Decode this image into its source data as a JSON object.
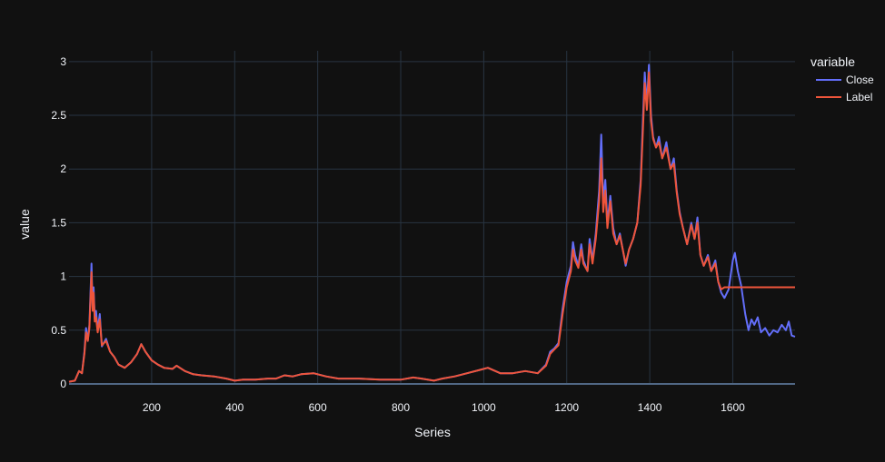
{
  "colors": {
    "background": "#111111",
    "grid": "#283442",
    "zeroline": "#506784",
    "text": "#f2f5fa"
  },
  "chart_data": {
    "type": "line",
    "xlabel": "Series",
    "ylabel": "value",
    "xlim": [
      1,
      1750
    ],
    "ylim": [
      0,
      3.1
    ],
    "xticks": [
      200,
      400,
      600,
      800,
      1000,
      1200,
      1400,
      1600
    ],
    "yticks": [
      0,
      0.5,
      1,
      1.5,
      2,
      2.5,
      3
    ],
    "ytick_labels": [
      "0",
      "0.5",
      "1",
      "1.5",
      "2",
      "2.5",
      "3"
    ],
    "grid": true,
    "legend": {
      "title": "variable",
      "placement": "top-right"
    },
    "series": [
      {
        "name": "Close",
        "color": "#636efa",
        "points": [
          [
            1,
            0.02
          ],
          [
            15,
            0.03
          ],
          [
            25,
            0.12
          ],
          [
            32,
            0.1
          ],
          [
            38,
            0.3
          ],
          [
            42,
            0.52
          ],
          [
            46,
            0.4
          ],
          [
            50,
            0.55
          ],
          [
            55,
            1.12
          ],
          [
            58,
            0.7
          ],
          [
            60,
            0.9
          ],
          [
            63,
            0.6
          ],
          [
            66,
            0.68
          ],
          [
            70,
            0.5
          ],
          [
            75,
            0.65
          ],
          [
            80,
            0.35
          ],
          [
            90,
            0.42
          ],
          [
            100,
            0.3
          ],
          [
            110,
            0.25
          ],
          [
            120,
            0.18
          ],
          [
            135,
            0.15
          ],
          [
            150,
            0.2
          ],
          [
            165,
            0.28
          ],
          [
            175,
            0.37
          ],
          [
            185,
            0.3
          ],
          [
            200,
            0.22
          ],
          [
            215,
            0.18
          ],
          [
            230,
            0.15
          ],
          [
            250,
            0.14
          ],
          [
            260,
            0.17
          ],
          [
            280,
            0.12
          ],
          [
            300,
            0.09
          ],
          [
            320,
            0.08
          ],
          [
            350,
            0.07
          ],
          [
            380,
            0.05
          ],
          [
            400,
            0.03
          ],
          [
            420,
            0.04
          ],
          [
            450,
            0.04
          ],
          [
            480,
            0.05
          ],
          [
            500,
            0.05
          ],
          [
            520,
            0.08
          ],
          [
            540,
            0.07
          ],
          [
            560,
            0.09
          ],
          [
            590,
            0.1
          ],
          [
            620,
            0.07
          ],
          [
            650,
            0.05
          ],
          [
            700,
            0.05
          ],
          [
            750,
            0.04
          ],
          [
            800,
            0.04
          ],
          [
            830,
            0.06
          ],
          [
            850,
            0.05
          ],
          [
            880,
            0.03
          ],
          [
            900,
            0.05
          ],
          [
            930,
            0.07
          ],
          [
            960,
            0.1
          ],
          [
            990,
            0.13
          ],
          [
            1010,
            0.15
          ],
          [
            1040,
            0.1
          ],
          [
            1070,
            0.1
          ],
          [
            1100,
            0.12
          ],
          [
            1130,
            0.1
          ],
          [
            1150,
            0.18
          ],
          [
            1160,
            0.3
          ],
          [
            1170,
            0.33
          ],
          [
            1180,
            0.38
          ],
          [
            1190,
            0.7
          ],
          [
            1200,
            0.95
          ],
          [
            1210,
            1.1
          ],
          [
            1215,
            1.32
          ],
          [
            1220,
            1.2
          ],
          [
            1228,
            1.1
          ],
          [
            1235,
            1.3
          ],
          [
            1240,
            1.15
          ],
          [
            1250,
            1.05
          ],
          [
            1255,
            1.35
          ],
          [
            1262,
            1.15
          ],
          [
            1270,
            1.4
          ],
          [
            1278,
            1.8
          ],
          [
            1283,
            2.32
          ],
          [
            1288,
            1.7
          ],
          [
            1293,
            1.9
          ],
          [
            1298,
            1.5
          ],
          [
            1305,
            1.75
          ],
          [
            1312,
            1.45
          ],
          [
            1320,
            1.3
          ],
          [
            1328,
            1.4
          ],
          [
            1335,
            1.25
          ],
          [
            1342,
            1.1
          ],
          [
            1350,
            1.25
          ],
          [
            1360,
            1.35
          ],
          [
            1370,
            1.5
          ],
          [
            1378,
            1.9
          ],
          [
            1383,
            2.4
          ],
          [
            1388,
            2.9
          ],
          [
            1393,
            2.6
          ],
          [
            1398,
            2.97
          ],
          [
            1403,
            2.5
          ],
          [
            1408,
            2.3
          ],
          [
            1415,
            2.2
          ],
          [
            1422,
            2.3
          ],
          [
            1430,
            2.1
          ],
          [
            1440,
            2.25
          ],
          [
            1450,
            2.0
          ],
          [
            1458,
            2.1
          ],
          [
            1465,
            1.8
          ],
          [
            1472,
            1.6
          ],
          [
            1480,
            1.45
          ],
          [
            1490,
            1.3
          ],
          [
            1500,
            1.5
          ],
          [
            1508,
            1.35
          ],
          [
            1515,
            1.55
          ],
          [
            1522,
            1.2
          ],
          [
            1530,
            1.1
          ],
          [
            1540,
            1.2
          ],
          [
            1548,
            1.05
          ],
          [
            1558,
            1.15
          ],
          [
            1565,
            0.95
          ],
          [
            1572,
            0.85
          ],
          [
            1580,
            0.8
          ],
          [
            1590,
            0.88
          ],
          [
            1600,
            1.15
          ],
          [
            1605,
            1.22
          ],
          [
            1612,
            1.05
          ],
          [
            1620,
            0.92
          ],
          [
            1630,
            0.65
          ],
          [
            1638,
            0.5
          ],
          [
            1645,
            0.6
          ],
          [
            1652,
            0.55
          ],
          [
            1660,
            0.62
          ],
          [
            1668,
            0.48
          ],
          [
            1678,
            0.52
          ],
          [
            1688,
            0.45
          ],
          [
            1698,
            0.5
          ],
          [
            1708,
            0.48
          ],
          [
            1718,
            0.55
          ],
          [
            1728,
            0.5
          ],
          [
            1735,
            0.58
          ],
          [
            1742,
            0.45
          ],
          [
            1750,
            0.44
          ]
        ]
      },
      {
        "name": "Label",
        "color": "#ef553b",
        "points": [
          [
            1,
            0.02
          ],
          [
            15,
            0.03
          ],
          [
            25,
            0.12
          ],
          [
            32,
            0.1
          ],
          [
            38,
            0.28
          ],
          [
            42,
            0.48
          ],
          [
            46,
            0.4
          ],
          [
            50,
            0.52
          ],
          [
            55,
            1.04
          ],
          [
            58,
            0.68
          ],
          [
            60,
            0.85
          ],
          [
            63,
            0.58
          ],
          [
            66,
            0.62
          ],
          [
            70,
            0.48
          ],
          [
            75,
            0.6
          ],
          [
            80,
            0.36
          ],
          [
            90,
            0.4
          ],
          [
            100,
            0.3
          ],
          [
            110,
            0.25
          ],
          [
            120,
            0.18
          ],
          [
            135,
            0.15
          ],
          [
            150,
            0.2
          ],
          [
            165,
            0.28
          ],
          [
            175,
            0.37
          ],
          [
            185,
            0.3
          ],
          [
            200,
            0.22
          ],
          [
            215,
            0.18
          ],
          [
            230,
            0.15
          ],
          [
            250,
            0.14
          ],
          [
            260,
            0.17
          ],
          [
            280,
            0.12
          ],
          [
            300,
            0.09
          ],
          [
            320,
            0.08
          ],
          [
            350,
            0.07
          ],
          [
            380,
            0.05
          ],
          [
            400,
            0.03
          ],
          [
            420,
            0.04
          ],
          [
            450,
            0.04
          ],
          [
            480,
            0.05
          ],
          [
            500,
            0.05
          ],
          [
            520,
            0.08
          ],
          [
            540,
            0.07
          ],
          [
            560,
            0.09
          ],
          [
            590,
            0.1
          ],
          [
            620,
            0.07
          ],
          [
            650,
            0.05
          ],
          [
            700,
            0.05
          ],
          [
            750,
            0.04
          ],
          [
            800,
            0.04
          ],
          [
            830,
            0.06
          ],
          [
            850,
            0.05
          ],
          [
            880,
            0.03
          ],
          [
            900,
            0.05
          ],
          [
            930,
            0.07
          ],
          [
            960,
            0.1
          ],
          [
            990,
            0.13
          ],
          [
            1010,
            0.15
          ],
          [
            1040,
            0.1
          ],
          [
            1070,
            0.1
          ],
          [
            1100,
            0.12
          ],
          [
            1130,
            0.1
          ],
          [
            1150,
            0.17
          ],
          [
            1160,
            0.28
          ],
          [
            1170,
            0.32
          ],
          [
            1180,
            0.36
          ],
          [
            1190,
            0.65
          ],
          [
            1200,
            0.9
          ],
          [
            1210,
            1.05
          ],
          [
            1215,
            1.25
          ],
          [
            1220,
            1.15
          ],
          [
            1228,
            1.08
          ],
          [
            1235,
            1.25
          ],
          [
            1240,
            1.12
          ],
          [
            1250,
            1.05
          ],
          [
            1255,
            1.3
          ],
          [
            1262,
            1.12
          ],
          [
            1270,
            1.35
          ],
          [
            1278,
            1.7
          ],
          [
            1283,
            2.1
          ],
          [
            1288,
            1.6
          ],
          [
            1293,
            1.8
          ],
          [
            1298,
            1.45
          ],
          [
            1305,
            1.7
          ],
          [
            1312,
            1.4
          ],
          [
            1320,
            1.3
          ],
          [
            1328,
            1.38
          ],
          [
            1335,
            1.25
          ],
          [
            1342,
            1.12
          ],
          [
            1350,
            1.25
          ],
          [
            1360,
            1.35
          ],
          [
            1370,
            1.5
          ],
          [
            1378,
            1.85
          ],
          [
            1383,
            2.3
          ],
          [
            1388,
            2.8
          ],
          [
            1393,
            2.55
          ],
          [
            1398,
            2.9
          ],
          [
            1403,
            2.45
          ],
          [
            1408,
            2.28
          ],
          [
            1415,
            2.2
          ],
          [
            1422,
            2.25
          ],
          [
            1430,
            2.1
          ],
          [
            1440,
            2.2
          ],
          [
            1450,
            2.0
          ],
          [
            1458,
            2.05
          ],
          [
            1465,
            1.78
          ],
          [
            1472,
            1.58
          ],
          [
            1480,
            1.45
          ],
          [
            1490,
            1.3
          ],
          [
            1500,
            1.48
          ],
          [
            1508,
            1.35
          ],
          [
            1515,
            1.5
          ],
          [
            1522,
            1.2
          ],
          [
            1530,
            1.1
          ],
          [
            1540,
            1.18
          ],
          [
            1548,
            1.05
          ],
          [
            1558,
            1.12
          ],
          [
            1565,
            0.95
          ],
          [
            1572,
            0.88
          ],
          [
            1580,
            0.9
          ],
          [
            1750,
            0.9
          ]
        ]
      }
    ]
  }
}
